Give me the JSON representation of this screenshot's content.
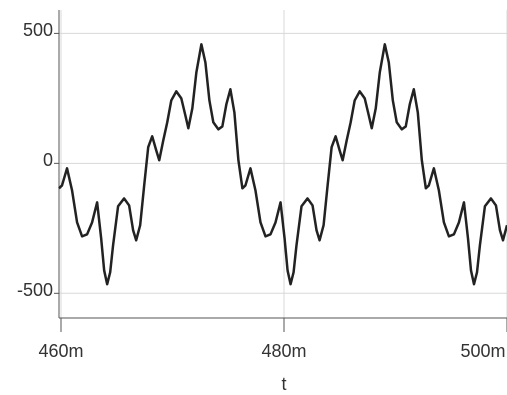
{
  "chart_data": {
    "type": "line",
    "x_label": "t",
    "x": [
      459.82,
      460.09,
      460.54,
      460.99,
      461.44,
      461.89,
      462.34,
      462.79,
      463.24,
      463.6,
      463.87,
      464.14,
      464.41,
      464.67,
      465.12,
      465.66,
      466.11,
      466.47,
      466.74,
      467.1,
      467.46,
      467.82,
      468.18,
      468.54,
      468.81,
      469.17,
      469.53,
      469.89,
      470.34,
      470.79,
      471.15,
      471.42,
      471.78,
      472.14,
      472.59,
      472.95,
      473.31,
      473.66,
      474.11,
      474.47,
      474.83,
      475.19,
      475.55,
      475.91,
      476.27,
      476.54,
      476.99,
      477.44,
      477.89,
      478.34,
      478.79,
      479.24,
      479.69,
      480.05,
      480.32,
      480.59,
      480.86,
      481.12,
      481.57,
      482.11,
      482.56,
      482.92,
      483.19,
      483.55,
      483.91,
      484.27,
      484.63,
      484.99,
      485.26,
      485.62,
      485.98,
      486.34,
      486.79,
      487.24,
      487.6,
      487.87,
      488.23,
      488.59,
      489.04,
      489.4,
      489.76,
      490.11,
      490.56,
      490.92,
      491.28,
      491.64,
      492.0,
      492.36,
      492.72,
      492.99,
      493.44,
      493.89,
      494.34,
      494.79,
      495.24,
      495.69,
      496.14,
      496.5,
      496.77,
      497.04,
      497.31,
      497.57,
      498.02,
      498.56,
      499.01,
      499.37,
      499.64,
      500.0
    ],
    "series": [
      {
        "color": "#222222",
        "values": [
          -96,
          -85,
          -19,
          -104,
          -227,
          -281,
          -273,
          -227,
          -150,
          -288,
          -412,
          -465,
          -419,
          -315,
          -165,
          -135,
          -162,
          -258,
          -296,
          -238,
          -85,
          62,
          104,
          50,
          12,
          88,
          158,
          242,
          277,
          250,
          185,
          135,
          212,
          350,
          458,
          388,
          242,
          158,
          131,
          142,
          227,
          285,
          196,
          12,
          -96,
          -85,
          -19,
          -104,
          -227,
          -281,
          -273,
          -227,
          -150,
          -288,
          -412,
          -465,
          -419,
          -315,
          -165,
          -135,
          -162,
          -258,
          -296,
          -238,
          -85,
          62,
          104,
          50,
          12,
          88,
          158,
          242,
          277,
          250,
          185,
          135,
          212,
          350,
          458,
          388,
          242,
          158,
          131,
          142,
          227,
          285,
          196,
          12,
          -96,
          -85,
          -19,
          -104,
          -227,
          -281,
          -273,
          -227,
          -150,
          -288,
          -412,
          -465,
          -419,
          -315,
          -165,
          -135,
          -162,
          -258,
          -296,
          -238
        ]
      }
    ],
    "xlim": [
      459.82,
      500
    ],
    "ylim": [
      -595,
      590
    ],
    "xticks": [
      {
        "value": 460,
        "label": "460m"
      },
      {
        "value": 480,
        "label": "480m"
      },
      {
        "value": 500,
        "label": "500m"
      }
    ],
    "yticks": [
      -500,
      0,
      500
    ],
    "grid": true
  }
}
